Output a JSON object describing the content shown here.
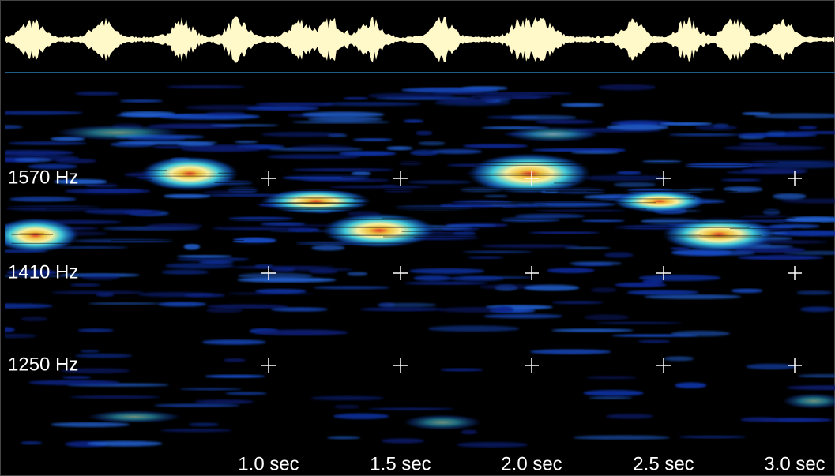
{
  "spectrogram": {
    "frequency_labels": [
      "1570 Hz",
      "1410 Hz",
      "1250 Hz"
    ],
    "time_labels": [
      "1.0 sec",
      "1.5 sec",
      "2.0 sec",
      "2.5 sec",
      "3.0 sec"
    ]
  }
}
